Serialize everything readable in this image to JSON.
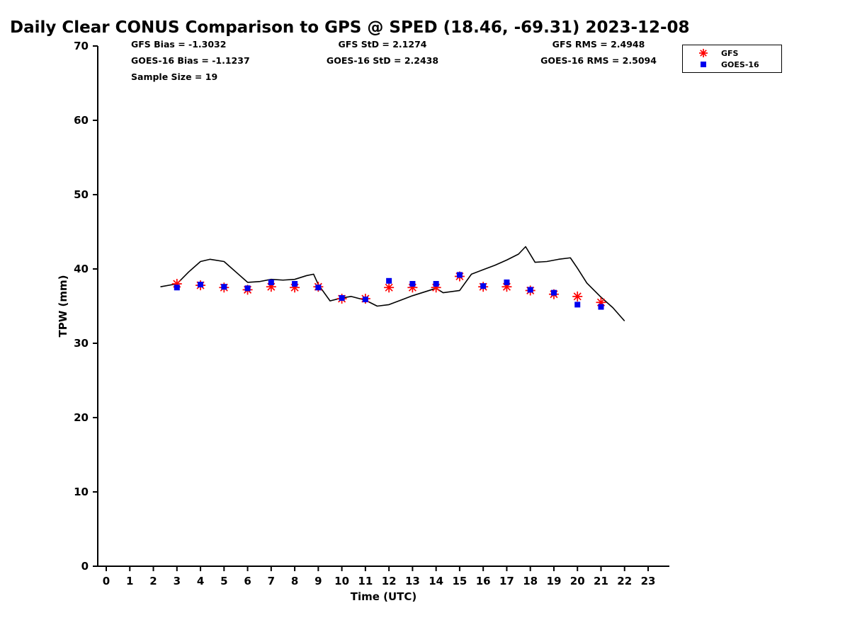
{
  "title": "Daily Clear CONUS Comparison to GPS @ SPED (18.46, -69.31) 2023-12-08",
  "stats": {
    "gfs_bias": "GFS Bias = -1.3032",
    "gfs_std": "GFS StD = 2.1274",
    "gfs_rms": "GFS RMS = 2.4948",
    "goes_bias": "GOES-16 Bias = -1.1237",
    "goes_std": "GOES-16 StD = 2.2438",
    "goes_rms": "GOES-16 RMS = 2.5094",
    "sample_size": "Sample Size = 19"
  },
  "legend": {
    "items": [
      {
        "label": "GFS",
        "marker": "asterisk",
        "color": "#ff0000"
      },
      {
        "label": "GOES-16",
        "marker": "square",
        "color": "#0000ee"
      }
    ]
  },
  "chart_data": {
    "type": "line",
    "title": "Daily Clear CONUS Comparison to GPS @ SPED (18.46, -69.31) 2023-12-08",
    "xlabel": "Time (UTC)",
    "ylabel": "TPW (mm)",
    "xlim": [
      -0.4,
      23.9
    ],
    "ylim": [
      0,
      70
    ],
    "grid": false,
    "legend_position": "top-right-outside",
    "xticks": [
      0,
      1,
      2,
      3,
      4,
      5,
      6,
      7,
      8,
      9,
      10,
      11,
      12,
      13,
      14,
      15,
      16,
      17,
      18,
      19,
      20,
      21,
      22,
      23
    ],
    "yticks": [
      0,
      10,
      20,
      30,
      40,
      50,
      60,
      70
    ],
    "series": [
      {
        "name": "GPS",
        "style": "line",
        "color": "#000000",
        "x": [
          2.3,
          3.0,
          3.5,
          4.0,
          4.4,
          5.0,
          5.5,
          6.0,
          6.5,
          7.0,
          7.5,
          8.0,
          8.5,
          8.8,
          9.0,
          9.5,
          10.0,
          10.4,
          11.0,
          11.5,
          12.0,
          12.5,
          13.0,
          13.5,
          14.0,
          14.3,
          15.0,
          15.5,
          16.0,
          16.5,
          17.0,
          17.5,
          17.8,
          18.2,
          18.7,
          19.2,
          19.7,
          20.0,
          20.4,
          21.0,
          21.5,
          22.0
        ],
        "y": [
          37.6,
          38.0,
          39.6,
          41.0,
          41.3,
          41.0,
          39.6,
          38.2,
          38.3,
          38.6,
          38.5,
          38.6,
          39.1,
          39.3,
          37.9,
          35.7,
          36.1,
          36.3,
          35.8,
          35.0,
          35.2,
          35.8,
          36.4,
          36.9,
          37.4,
          36.8,
          37.1,
          39.3,
          39.9,
          40.5,
          41.2,
          42.0,
          43.0,
          40.9,
          41.0,
          41.3,
          41.5,
          40.1,
          38.1,
          36.2,
          34.8,
          33.0
        ]
      },
      {
        "name": "GFS",
        "style": "asterisk",
        "color": "#ff0000",
        "x": [
          3,
          4,
          5,
          6,
          7,
          8,
          9,
          10,
          11,
          12,
          13,
          14,
          15,
          16,
          17,
          18,
          19,
          20,
          21
        ],
        "y": [
          38.0,
          37.8,
          37.5,
          37.2,
          37.6,
          37.5,
          37.6,
          36.0,
          36.0,
          37.5,
          37.5,
          37.5,
          39.0,
          37.6,
          37.6,
          37.1,
          36.6,
          36.3,
          35.5
        ]
      },
      {
        "name": "GOES-16",
        "style": "square",
        "color": "#0000ee",
        "x": [
          3,
          4,
          5,
          6,
          7,
          8,
          9,
          10,
          11,
          12,
          13,
          14,
          15,
          16,
          17,
          18,
          19,
          20,
          21
        ],
        "y": [
          37.5,
          37.9,
          37.6,
          37.4,
          38.2,
          38.0,
          37.5,
          36.1,
          35.9,
          38.4,
          38.0,
          38.0,
          39.2,
          37.7,
          38.2,
          37.2,
          36.8,
          35.2,
          34.9
        ]
      }
    ],
    "sample_size": 19
  }
}
